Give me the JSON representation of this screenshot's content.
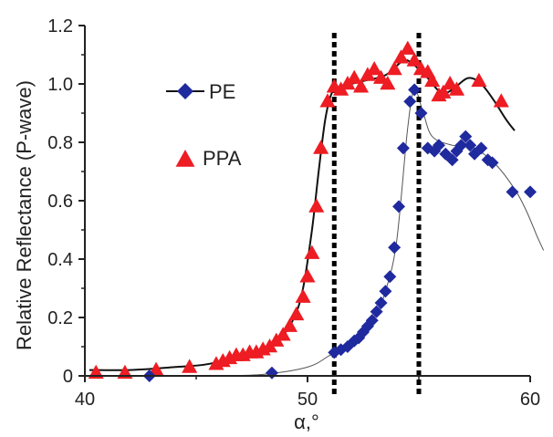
{
  "chart_data": {
    "type": "scatter",
    "title": "",
    "xlabel": "α,°",
    "ylabel": "Relative Reflectance (P-wave)",
    "xlim": [
      40,
      60
    ],
    "ylim": [
      0,
      1.2
    ],
    "x_ticks": [
      "40",
      "50",
      "60"
    ],
    "y_ticks": [
      "0",
      "0.2",
      "0.4",
      "0.6",
      "0.8",
      "1.0",
      "1.2"
    ],
    "grid": false,
    "legend_position": "upper-left",
    "vertical_lines": [
      51.2,
      55.0
    ],
    "series": [
      {
        "name": "PE",
        "marker": "diamond",
        "color": "#1f2a9e",
        "points": [
          [
            42.9,
            0.0
          ],
          [
            48.4,
            0.01
          ],
          [
            51.2,
            0.08
          ],
          [
            51.5,
            0.09
          ],
          [
            51.8,
            0.1
          ],
          [
            52.1,
            0.12
          ],
          [
            52.3,
            0.13
          ],
          [
            52.5,
            0.15
          ],
          [
            52.7,
            0.17
          ],
          [
            52.9,
            0.19
          ],
          [
            53.1,
            0.22
          ],
          [
            53.3,
            0.25
          ],
          [
            53.5,
            0.29
          ],
          [
            53.7,
            0.34
          ],
          [
            53.9,
            0.44
          ],
          [
            54.1,
            0.58
          ],
          [
            54.3,
            0.78
          ],
          [
            54.6,
            0.94
          ],
          [
            54.8,
            0.98
          ],
          [
            55.1,
            0.9
          ],
          [
            55.4,
            0.78
          ],
          [
            55.7,
            0.77
          ],
          [
            55.9,
            0.79
          ],
          [
            56.2,
            0.76
          ],
          [
            56.5,
            0.74
          ],
          [
            56.7,
            0.77
          ],
          [
            56.9,
            0.79
          ],
          [
            57.1,
            0.82
          ],
          [
            57.3,
            0.79
          ],
          [
            57.5,
            0.76
          ],
          [
            57.8,
            0.78
          ],
          [
            58.1,
            0.74
          ],
          [
            58.3,
            0.73
          ],
          [
            59.2,
            0.63
          ],
          [
            60.0,
            0.63
          ]
        ],
        "curve": [
          [
            46.0,
            0.0
          ],
          [
            48.0,
            0.005
          ],
          [
            50.0,
            0.03
          ],
          [
            51.0,
            0.07
          ],
          [
            52.0,
            0.11
          ],
          [
            53.0,
            0.2
          ],
          [
            53.5,
            0.29
          ],
          [
            54.0,
            0.46
          ],
          [
            54.5,
            0.85
          ],
          [
            54.8,
            0.98
          ],
          [
            55.2,
            0.9
          ],
          [
            55.6,
            0.82
          ],
          [
            56.5,
            0.79
          ],
          [
            57.5,
            0.78
          ],
          [
            58.5,
            0.72
          ],
          [
            59.3,
            0.64
          ],
          [
            59.8,
            0.57
          ],
          [
            60.3,
            0.48
          ],
          [
            60.6,
            0.43
          ]
        ]
      },
      {
        "name": "PPA",
        "marker": "triangle",
        "color": "#ee1c23",
        "points": [
          [
            40.5,
            0.01
          ],
          [
            41.8,
            0.01
          ],
          [
            43.2,
            0.02
          ],
          [
            44.7,
            0.03
          ],
          [
            45.9,
            0.04
          ],
          [
            46.2,
            0.05
          ],
          [
            46.5,
            0.06
          ],
          [
            46.8,
            0.07
          ],
          [
            47.1,
            0.07
          ],
          [
            47.4,
            0.08
          ],
          [
            47.7,
            0.08
          ],
          [
            48.0,
            0.09
          ],
          [
            48.3,
            0.1
          ],
          [
            48.6,
            0.12
          ],
          [
            48.9,
            0.14
          ],
          [
            49.2,
            0.17
          ],
          [
            49.5,
            0.21
          ],
          [
            49.8,
            0.27
          ],
          [
            50.0,
            0.34
          ],
          [
            50.2,
            0.42
          ],
          [
            50.4,
            0.58
          ],
          [
            50.6,
            0.78
          ],
          [
            50.9,
            0.94
          ],
          [
            51.2,
            0.99
          ],
          [
            51.5,
            0.98
          ],
          [
            51.8,
            1.0
          ],
          [
            52.1,
            1.02
          ],
          [
            52.4,
            0.99
          ],
          [
            52.7,
            1.03
          ],
          [
            53.0,
            1.05
          ],
          [
            53.3,
            1.02
          ],
          [
            53.6,
            1.0
          ],
          [
            53.9,
            1.05
          ],
          [
            54.2,
            1.09
          ],
          [
            54.5,
            1.12
          ],
          [
            54.8,
            1.08
          ],
          [
            55.1,
            1.05
          ],
          [
            55.4,
            1.04
          ],
          [
            55.6,
            1.01
          ],
          [
            55.9,
            0.96
          ],
          [
            56.1,
            0.97
          ],
          [
            56.4,
            1.0
          ],
          [
            56.7,
            0.98
          ],
          [
            57.7,
            1.01
          ],
          [
            58.7,
            0.94
          ]
        ],
        "curve": [
          [
            40.2,
            0.02
          ],
          [
            42.0,
            0.02
          ],
          [
            44.0,
            0.03
          ],
          [
            45.5,
            0.04
          ],
          [
            47.0,
            0.07
          ],
          [
            48.0,
            0.09
          ],
          [
            48.8,
            0.13
          ],
          [
            49.4,
            0.2
          ],
          [
            49.8,
            0.3
          ],
          [
            50.2,
            0.5
          ],
          [
            50.5,
            0.7
          ],
          [
            50.8,
            0.88
          ],
          [
            51.1,
            0.97
          ],
          [
            51.5,
            0.99
          ],
          [
            52.5,
            1.01
          ],
          [
            53.5,
            1.03
          ],
          [
            54.3,
            1.08
          ],
          [
            54.7,
            1.07
          ],
          [
            55.0,
            1.05
          ],
          [
            55.4,
            1.02
          ],
          [
            56.0,
            0.97
          ],
          [
            56.5,
            0.98
          ],
          [
            57.2,
            1.02
          ],
          [
            57.8,
            1.0
          ],
          [
            58.4,
            0.94
          ],
          [
            58.9,
            0.88
          ],
          [
            59.3,
            0.84
          ]
        ]
      }
    ]
  }
}
